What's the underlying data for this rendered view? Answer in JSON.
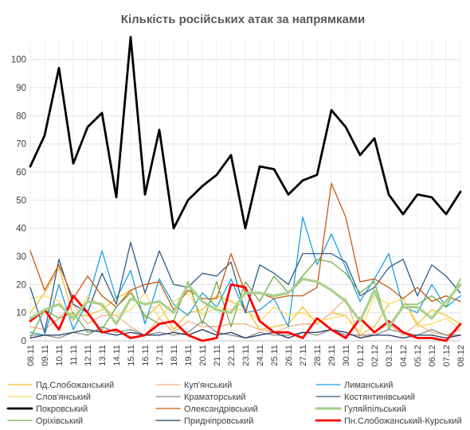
{
  "chart_data": {
    "type": "line",
    "title": "Кількість російських атак за напрямками",
    "xlabel": "",
    "ylabel": "",
    "ylim": [
      0,
      107
    ],
    "yticks": [
      0,
      10,
      20,
      30,
      40,
      50,
      60,
      70,
      80,
      90,
      100
    ],
    "grid": true,
    "legend_position": "bottom",
    "x": [
      "08.11",
      "09.11",
      "10.11",
      "11.11",
      "12.11",
      "13.11",
      "14.11",
      "15.11",
      "16.11",
      "17.11",
      "18.11",
      "19.11",
      "20.11",
      "21.11",
      "22.11",
      "23.11",
      "24.11",
      "25.11",
      "26.11",
      "27.11",
      "28.11",
      "29.11",
      "30.11",
      "01.12",
      "02.12",
      "03.12",
      "04.12",
      "05.12",
      "06.12",
      "07.12",
      "08.12"
    ],
    "series": [
      {
        "name": "Пд.Слобожанський",
        "color": "#F2C12E",
        "width": 1.3,
        "values": [
          10,
          17,
          26,
          9,
          9,
          11,
          15,
          18,
          8,
          13,
          4,
          10,
          11,
          16,
          14,
          12,
          4,
          5,
          6,
          12,
          6,
          10,
          9,
          2,
          5,
          13,
          15,
          6,
          11,
          9,
          6
        ]
      },
      {
        "name": "Куп'янський",
        "color": "#F4B183",
        "width": 1.3,
        "values": [
          5,
          4,
          8,
          13,
          6,
          9,
          9,
          5,
          2,
          8,
          3,
          7,
          5,
          5,
          6,
          6,
          4,
          3,
          5,
          6,
          6,
          10,
          15,
          1,
          3,
          6,
          2,
          6,
          3,
          2,
          4
        ]
      },
      {
        "name": "Лиманський",
        "color": "#1BA1E2",
        "width": 1.3,
        "values": [
          3,
          2,
          20,
          4,
          14,
          32,
          15,
          25,
          6,
          22,
          13,
          9,
          17,
          12,
          22,
          10,
          11,
          15,
          5,
          44,
          27,
          38,
          26,
          14,
          22,
          31,
          12,
          10,
          20,
          12,
          16
        ]
      },
      {
        "name": "Слов'янський",
        "color": "#FFD966",
        "width": 1.3,
        "values": [
          15,
          16,
          14,
          7,
          16,
          12,
          9,
          11,
          17,
          8,
          14,
          17,
          9,
          12,
          11,
          11,
          7,
          12,
          9,
          10,
          7,
          8,
          9,
          3,
          16,
          13,
          15,
          5,
          6,
          8,
          4
        ]
      },
      {
        "name": "Краматорський",
        "color": "#8C8C8C",
        "width": 1.3,
        "values": [
          2,
          2,
          1,
          3,
          2,
          5,
          3,
          4,
          2,
          3,
          2,
          3,
          7,
          3,
          2,
          1,
          3,
          2,
          2,
          3,
          2,
          4,
          2,
          2,
          2,
          4,
          3,
          2,
          4,
          2,
          2
        ]
      },
      {
        "name": "Костянтинівський",
        "color": "#2E5C8A",
        "width": 1.3,
        "values": [
          19,
          3,
          29,
          13,
          10,
          24,
          13,
          35,
          17,
          32,
          20,
          19,
          24,
          23,
          28,
          10,
          27,
          24,
          20,
          31,
          31,
          31,
          28,
          16,
          19,
          26,
          29,
          16,
          27,
          23,
          17
        ]
      },
      {
        "name": "Покровський",
        "color": "#000000",
        "width": 2.8,
        "values": [
          62,
          73,
          97,
          63,
          76,
          81,
          51,
          108,
          52,
          75,
          40,
          50,
          55,
          59,
          66,
          40,
          62,
          61,
          52,
          57,
          59,
          82,
          76,
          66,
          72,
          52,
          45,
          52,
          51,
          45,
          53
        ]
      },
      {
        "name": "Олександрівський",
        "color": "#C55A11",
        "width": 1.3,
        "values": [
          32,
          18,
          27,
          15,
          23,
          16,
          12,
          18,
          20,
          21,
          11,
          18,
          15,
          15,
          31,
          17,
          17,
          15,
          16,
          16,
          19,
          56,
          44,
          21,
          22,
          19,
          15,
          19,
          14,
          16,
          14
        ]
      },
      {
        "name": "Гуляйпільський",
        "color": "#A9D18E",
        "width": 3.2,
        "values": [
          8,
          11,
          13,
          8,
          14,
          13,
          6,
          15,
          13,
          14,
          10,
          20,
          14,
          11,
          10,
          17,
          17,
          16,
          17,
          22,
          21,
          18,
          14,
          7,
          18,
          5,
          12,
          12,
          8,
          14,
          20
        ]
      },
      {
        "name": "Оріхівський",
        "color": "#70AD47",
        "width": 1.3,
        "values": [
          1,
          11,
          8,
          10,
          3,
          4,
          12,
          17,
          9,
          6,
          7,
          21,
          6,
          21,
          5,
          21,
          14,
          23,
          17,
          23,
          29,
          28,
          24,
          17,
          21,
          4,
          13,
          13,
          16,
          12,
          22
        ]
      },
      {
        "name": "Придніпровський",
        "color": "#203864",
        "width": 1.3,
        "values": [
          1,
          2,
          2,
          3,
          4,
          3,
          2,
          3,
          2,
          2,
          3,
          2,
          4,
          2,
          3,
          1,
          2,
          3,
          1,
          3,
          3,
          4,
          3,
          1,
          2,
          2,
          1,
          2,
          2,
          1,
          2
        ]
      },
      {
        "name": "Пн.Слобожанський-Курський",
        "color": "#FF0000",
        "width": 2.8,
        "values": [
          7,
          11,
          4,
          16,
          10,
          3,
          4,
          1,
          2,
          6,
          7,
          2,
          0,
          1,
          20,
          19,
          7,
          3,
          3,
          1,
          8,
          4,
          1,
          8,
          3,
          7,
          3,
          1,
          1,
          0,
          6
        ]
      }
    ]
  }
}
